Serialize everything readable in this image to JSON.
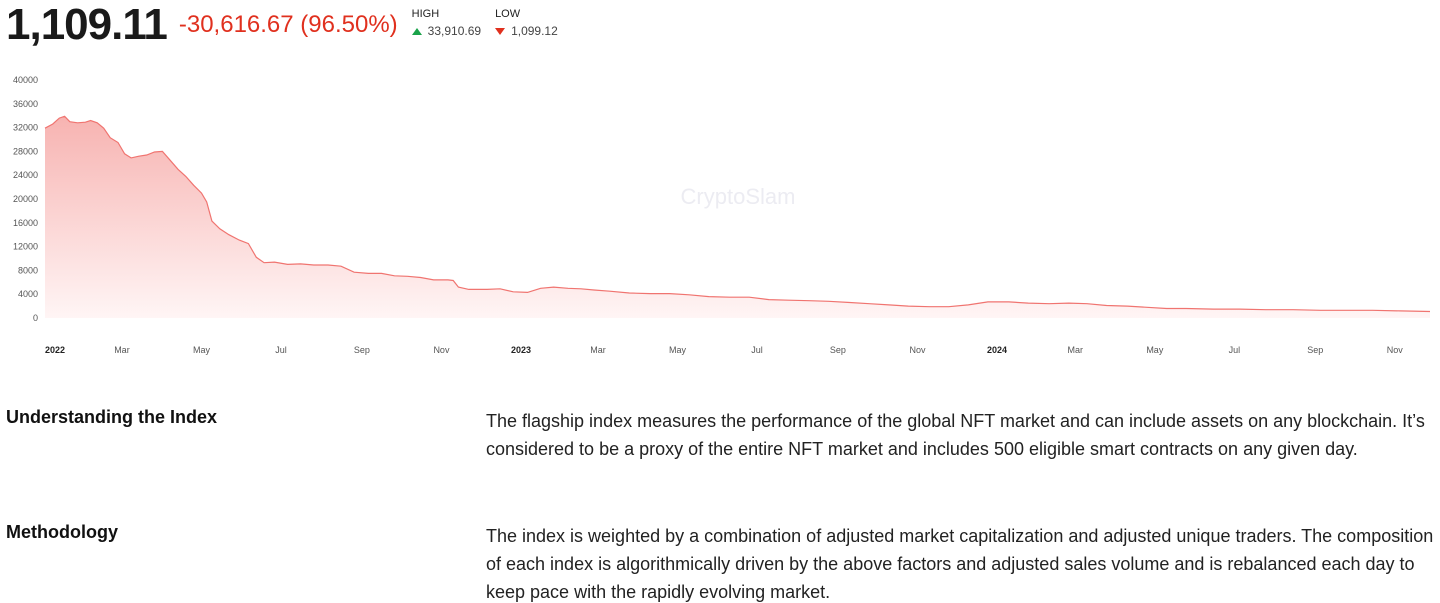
{
  "header": {
    "price": "1,109.11",
    "change": "-30,616.67 (96.50%)",
    "high_label": "HIGH",
    "high_value": "33,910.69",
    "low_label": "LOW",
    "low_value": "1,099.12"
  },
  "colors": {
    "line": "#f07470",
    "fill_top": "#f7b3b1",
    "fill_bottom": "#fff5f5",
    "change": "#e0301e",
    "up": "#1aa34a",
    "down": "#e0301e"
  },
  "chart_data": {
    "type": "area",
    "watermark": "CryptoSlam",
    "ylim": [
      0,
      40000
    ],
    "yticks": [
      0,
      4000,
      8000,
      12000,
      16000,
      20000,
      24000,
      28000,
      32000,
      36000,
      40000
    ],
    "xlim": [
      "2022-01-01",
      "2024-11-28"
    ],
    "xticks": [
      {
        "date": "2022-01-01",
        "label": "2022",
        "bold": true
      },
      {
        "date": "2022-03-01",
        "label": "Mar",
        "bold": false
      },
      {
        "date": "2022-05-01",
        "label": "May",
        "bold": false
      },
      {
        "date": "2022-07-01",
        "label": "Jul",
        "bold": false
      },
      {
        "date": "2022-09-01",
        "label": "Sep",
        "bold": false
      },
      {
        "date": "2022-11-01",
        "label": "Nov",
        "bold": false
      },
      {
        "date": "2023-01-01",
        "label": "2023",
        "bold": true
      },
      {
        "date": "2023-03-01",
        "label": "Mar",
        "bold": false
      },
      {
        "date": "2023-05-01",
        "label": "May",
        "bold": false
      },
      {
        "date": "2023-07-01",
        "label": "Jul",
        "bold": false
      },
      {
        "date": "2023-09-01",
        "label": "Sep",
        "bold": false
      },
      {
        "date": "2023-11-01",
        "label": "Nov",
        "bold": false
      },
      {
        "date": "2024-01-01",
        "label": "2024",
        "bold": true
      },
      {
        "date": "2024-03-01",
        "label": "Mar",
        "bold": false
      },
      {
        "date": "2024-05-01",
        "label": "May",
        "bold": false
      },
      {
        "date": "2024-07-01",
        "label": "Jul",
        "bold": false
      },
      {
        "date": "2024-09-01",
        "label": "Sep",
        "bold": false
      },
      {
        "date": "2024-11-01",
        "label": "Nov",
        "bold": false
      }
    ],
    "series": [
      {
        "points": [
          [
            "2022-01-01",
            31900
          ],
          [
            "2022-01-07",
            32600
          ],
          [
            "2022-01-12",
            33600
          ],
          [
            "2022-01-16",
            33900
          ],
          [
            "2022-01-20",
            33000
          ],
          [
            "2022-01-26",
            32800
          ],
          [
            "2022-02-01",
            32900
          ],
          [
            "2022-02-05",
            33200
          ],
          [
            "2022-02-10",
            32800
          ],
          [
            "2022-02-15",
            31900
          ],
          [
            "2022-02-20",
            30300
          ],
          [
            "2022-02-26",
            29500
          ],
          [
            "2022-03-03",
            27600
          ],
          [
            "2022-03-08",
            26900
          ],
          [
            "2022-03-14",
            27200
          ],
          [
            "2022-03-20",
            27400
          ],
          [
            "2022-03-26",
            27900
          ],
          [
            "2022-04-01",
            28000
          ],
          [
            "2022-04-07",
            26500
          ],
          [
            "2022-04-13",
            25000
          ],
          [
            "2022-04-19",
            23800
          ],
          [
            "2022-04-25",
            22300
          ],
          [
            "2022-05-01",
            21000
          ],
          [
            "2022-05-05",
            19500
          ],
          [
            "2022-05-09",
            16300
          ],
          [
            "2022-05-15",
            15000
          ],
          [
            "2022-05-22",
            14000
          ],
          [
            "2022-05-30",
            13100
          ],
          [
            "2022-06-06",
            12500
          ],
          [
            "2022-06-12",
            10200
          ],
          [
            "2022-06-18",
            9300
          ],
          [
            "2022-06-26",
            9400
          ],
          [
            "2022-07-06",
            9000
          ],
          [
            "2022-07-16",
            9100
          ],
          [
            "2022-07-26",
            8900
          ],
          [
            "2022-08-06",
            8900
          ],
          [
            "2022-08-16",
            8700
          ],
          [
            "2022-08-26",
            7700
          ],
          [
            "2022-09-06",
            7500
          ],
          [
            "2022-09-16",
            7500
          ],
          [
            "2022-09-26",
            7100
          ],
          [
            "2022-10-06",
            7000
          ],
          [
            "2022-10-16",
            6800
          ],
          [
            "2022-10-26",
            6400
          ],
          [
            "2022-11-06",
            6400
          ],
          [
            "2022-11-10",
            6300
          ],
          [
            "2022-11-14",
            5200
          ],
          [
            "2022-11-22",
            4800
          ],
          [
            "2022-12-06",
            4800
          ],
          [
            "2022-12-16",
            4900
          ],
          [
            "2022-12-26",
            4400
          ],
          [
            "2023-01-06",
            4300
          ],
          [
            "2023-01-16",
            5000
          ],
          [
            "2023-01-26",
            5200
          ],
          [
            "2023-02-06",
            5000
          ],
          [
            "2023-02-16",
            4900
          ],
          [
            "2023-02-26",
            4700
          ],
          [
            "2023-03-10",
            4500
          ],
          [
            "2023-03-25",
            4200
          ],
          [
            "2023-04-10",
            4100
          ],
          [
            "2023-04-25",
            4100
          ],
          [
            "2023-05-10",
            3900
          ],
          [
            "2023-05-25",
            3600
          ],
          [
            "2023-06-10",
            3500
          ],
          [
            "2023-06-25",
            3500
          ],
          [
            "2023-07-10",
            3100
          ],
          [
            "2023-07-25",
            3000
          ],
          [
            "2023-08-10",
            2900
          ],
          [
            "2023-08-25",
            2800
          ],
          [
            "2023-09-10",
            2600
          ],
          [
            "2023-09-25",
            2400
          ],
          [
            "2023-10-10",
            2200
          ],
          [
            "2023-10-25",
            2000
          ],
          [
            "2023-11-10",
            1900
          ],
          [
            "2023-11-25",
            1900
          ],
          [
            "2023-12-10",
            2200
          ],
          [
            "2023-12-25",
            2700
          ],
          [
            "2024-01-10",
            2700
          ],
          [
            "2024-01-25",
            2500
          ],
          [
            "2024-02-10",
            2400
          ],
          [
            "2024-02-25",
            2500
          ],
          [
            "2024-03-10",
            2400
          ],
          [
            "2024-03-25",
            2100
          ],
          [
            "2024-04-10",
            2000
          ],
          [
            "2024-04-25",
            1800
          ],
          [
            "2024-05-10",
            1600
          ],
          [
            "2024-05-25",
            1600
          ],
          [
            "2024-06-15",
            1500
          ],
          [
            "2024-07-05",
            1500
          ],
          [
            "2024-07-25",
            1400
          ],
          [
            "2024-08-15",
            1400
          ],
          [
            "2024-09-05",
            1300
          ],
          [
            "2024-09-25",
            1300
          ],
          [
            "2024-10-15",
            1300
          ],
          [
            "2024-11-05",
            1200
          ],
          [
            "2024-11-28",
            1100
          ]
        ]
      }
    ]
  },
  "sections": [
    {
      "label": "Understanding the Index",
      "text": "The flagship index measures the performance of the global NFT market and can include assets on any blockchain. It’s considered to be a proxy of the entire NFT market and includes 500 eligible smart contracts on any given day."
    },
    {
      "label": "Methodology",
      "text": "The index is weighted by a combination of adjusted market capitalization and adjusted unique traders. The composition of each index is algorithmically driven by the above factors and adjusted sales volume and is rebalanced each day to keep pace with the rapidly evolving market."
    }
  ]
}
